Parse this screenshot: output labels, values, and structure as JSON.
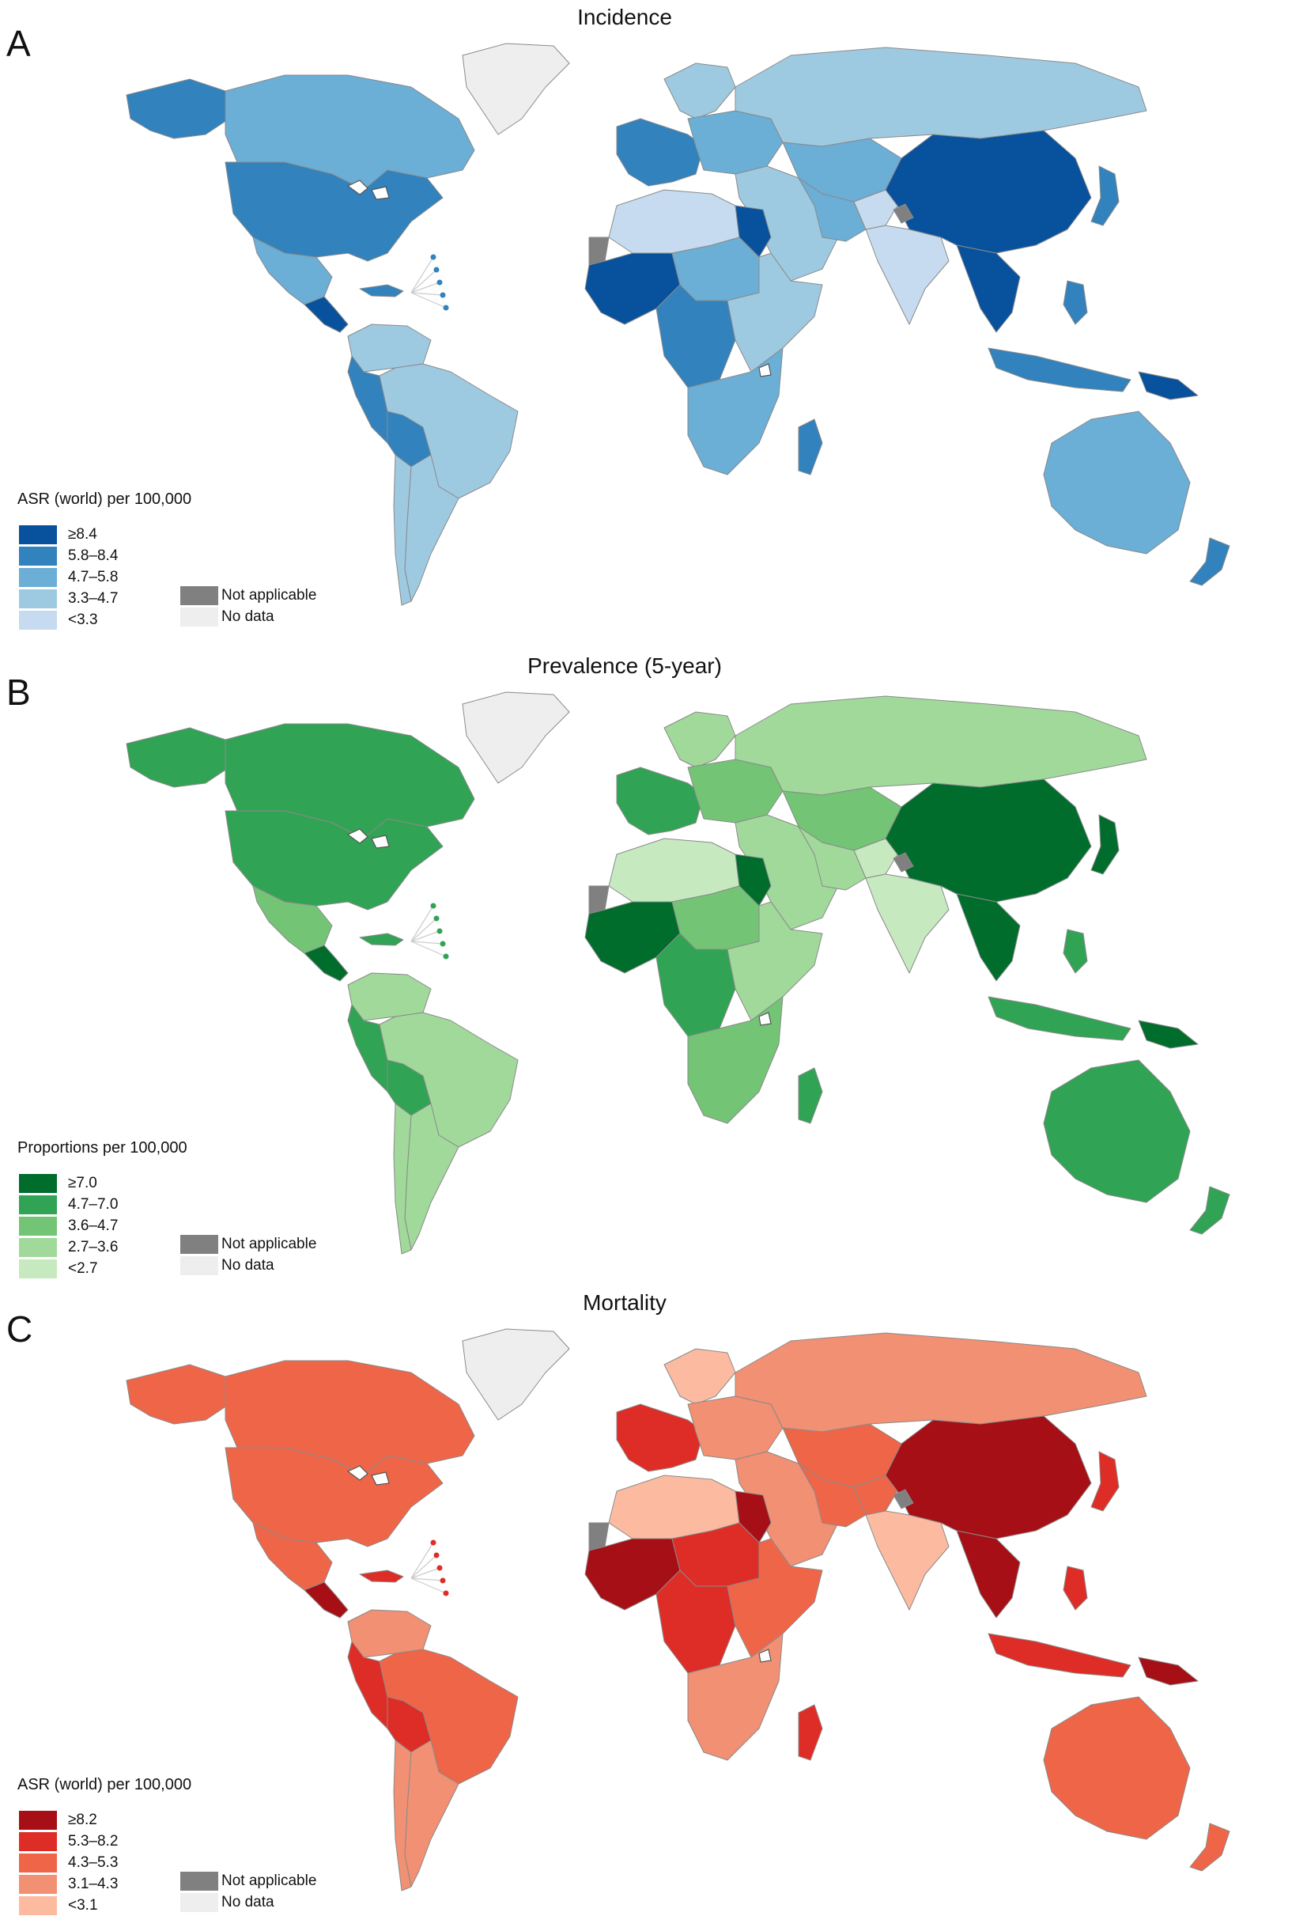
{
  "panels": [
    {
      "letter": "A",
      "title": "Incidence",
      "legend_title": "ASR (world) per 100,000",
      "legend": [
        {
          "label": "≥8.4",
          "color": "#08519c"
        },
        {
          "label": "5.8–8.4",
          "color": "#3182bd"
        },
        {
          "label": "4.7–5.8",
          "color": "#6baed6"
        },
        {
          "label": "3.3–4.7",
          "color": "#9ecae1"
        },
        {
          "label": "<3.3",
          "color": "#c6dbef"
        }
      ],
      "not_applicable": {
        "label": "Not applicable",
        "color": "#808080"
      },
      "no_data": {
        "label": "No data",
        "color": "#eeeeee"
      }
    },
    {
      "letter": "B",
      "title": "Prevalence (5-year)",
      "legend_title": "Proportions per 100,000",
      "legend": [
        {
          "label": "≥7.0",
          "color": "#006d2c"
        },
        {
          "label": "4.7–7.0",
          "color": "#31a354"
        },
        {
          "label": "3.6–4.7",
          "color": "#74c476"
        },
        {
          "label": "2.7–3.6",
          "color": "#a1d99b"
        },
        {
          "label": "<2.7",
          "color": "#c7e9c0"
        }
      ],
      "not_applicable": {
        "label": "Not applicable",
        "color": "#808080"
      },
      "no_data": {
        "label": "No data",
        "color": "#eeeeee"
      }
    },
    {
      "letter": "C",
      "title": "Mortality",
      "legend_title": "ASR (world) per 100,000",
      "legend": [
        {
          "label": "≥8.2",
          "color": "#a50f15"
        },
        {
          "label": "5.3–8.2",
          "color": "#de2d26"
        },
        {
          "label": "4.3–5.3",
          "color": "#ef6548"
        },
        {
          "label": "3.1–4.3",
          "color": "#f19073"
        },
        {
          "label": "<3.1",
          "color": "#fcbba1"
        }
      ],
      "not_applicable": {
        "label": "Not applicable",
        "color": "#808080"
      },
      "no_data": {
        "label": "No data",
        "color": "#eeeeee"
      }
    }
  ],
  "regions": {
    "A": {
      "greenland": 5,
      "canada": 2,
      "usa": 1,
      "alaska": 1,
      "mexico": 2,
      "central_america": 0,
      "caribbean": 1,
      "colombia_venezuela": 3,
      "peru": 1,
      "bolivia": 1,
      "brazil": 3,
      "argentina": 3,
      "chile": 3,
      "western_europe": 1,
      "scandinavia": 3,
      "eastern_europe": 2,
      "russia": 3,
      "kazakhstan_central_asia": 2,
      "middle_east": 3,
      "iran": 2,
      "afghanistan": 4,
      "india": 4,
      "china": 0,
      "southeast_asia": 0,
      "japan": 1,
      "north_africa": 4,
      "egypt": 0,
      "west_africa": 0,
      "sahel": 2,
      "central_africa": 1,
      "east_africa": 3,
      "southern_africa": 2,
      "madagascar": 1,
      "indonesia": 1,
      "philippines": 1,
      "png": 0,
      "australia": 2,
      "new_zealand": 1,
      "kashmir": 6,
      "western_sahara": 6
    },
    "B": {
      "greenland": 5,
      "canada": 1,
      "usa": 1,
      "alaska": 1,
      "mexico": 2,
      "central_america": 0,
      "caribbean": 1,
      "colombia_venezuela": 3,
      "peru": 1,
      "bolivia": 1,
      "brazil": 3,
      "argentina": 3,
      "chile": 3,
      "western_europe": 1,
      "scandinavia": 3,
      "eastern_europe": 2,
      "russia": 3,
      "kazakhstan_central_asia": 2,
      "middle_east": 3,
      "iran": 3,
      "afghanistan": 4,
      "india": 4,
      "china": 0,
      "southeast_asia": 0,
      "japan": 0,
      "north_africa": 4,
      "egypt": 0,
      "west_africa": 0,
      "sahel": 2,
      "central_africa": 1,
      "east_africa": 3,
      "southern_africa": 2,
      "madagascar": 1,
      "indonesia": 1,
      "philippines": 1,
      "png": 0,
      "australia": 1,
      "new_zealand": 1,
      "kashmir": 6,
      "western_sahara": 6
    },
    "C": {
      "greenland": 5,
      "canada": 2,
      "usa": 2,
      "alaska": 2,
      "mexico": 2,
      "central_america": 0,
      "caribbean": 1,
      "colombia_venezuela": 3,
      "peru": 1,
      "bolivia": 1,
      "brazil": 2,
      "argentina": 3,
      "chile": 3,
      "western_europe": 1,
      "scandinavia": 4,
      "eastern_europe": 3,
      "russia": 3,
      "kazakhstan_central_asia": 2,
      "middle_east": 3,
      "iran": 2,
      "afghanistan": 2,
      "india": 4,
      "china": 0,
      "southeast_asia": 0,
      "japan": 1,
      "north_africa": 4,
      "egypt": 0,
      "west_africa": 0,
      "sahel": 1,
      "central_africa": 1,
      "east_africa": 2,
      "southern_africa": 3,
      "madagascar": 1,
      "indonesia": 1,
      "philippines": 1,
      "png": 0,
      "australia": 2,
      "new_zealand": 2,
      "kashmir": 6,
      "western_sahara": 6
    }
  }
}
